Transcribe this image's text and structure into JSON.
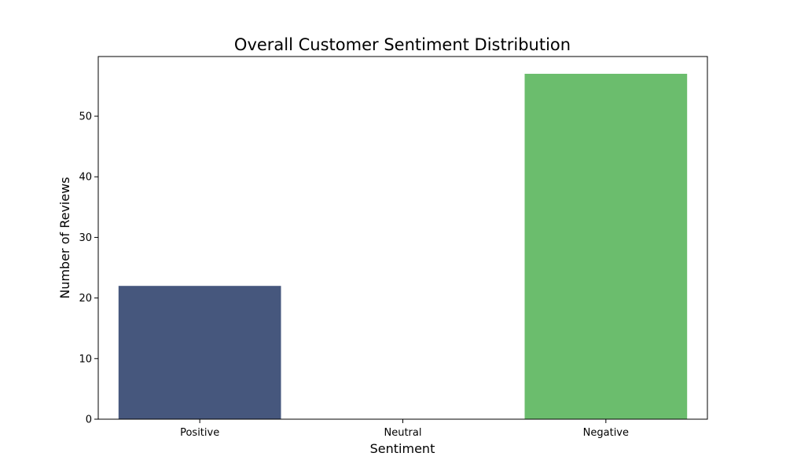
{
  "chart_data": {
    "type": "bar",
    "title": "Overall Customer Sentiment Distribution",
    "xlabel": "Sentiment",
    "ylabel": "Number of Reviews",
    "categories": [
      "Positive",
      "Neutral",
      "Negative"
    ],
    "values": [
      22,
      0,
      57
    ],
    "colors": [
      "#46577d",
      "#2a9a8c",
      "#6bbd6d"
    ],
    "ylim": [
      0,
      60
    ],
    "yticks": [
      0,
      10,
      20,
      30,
      40,
      50
    ],
    "grid": false,
    "legend": "none"
  }
}
